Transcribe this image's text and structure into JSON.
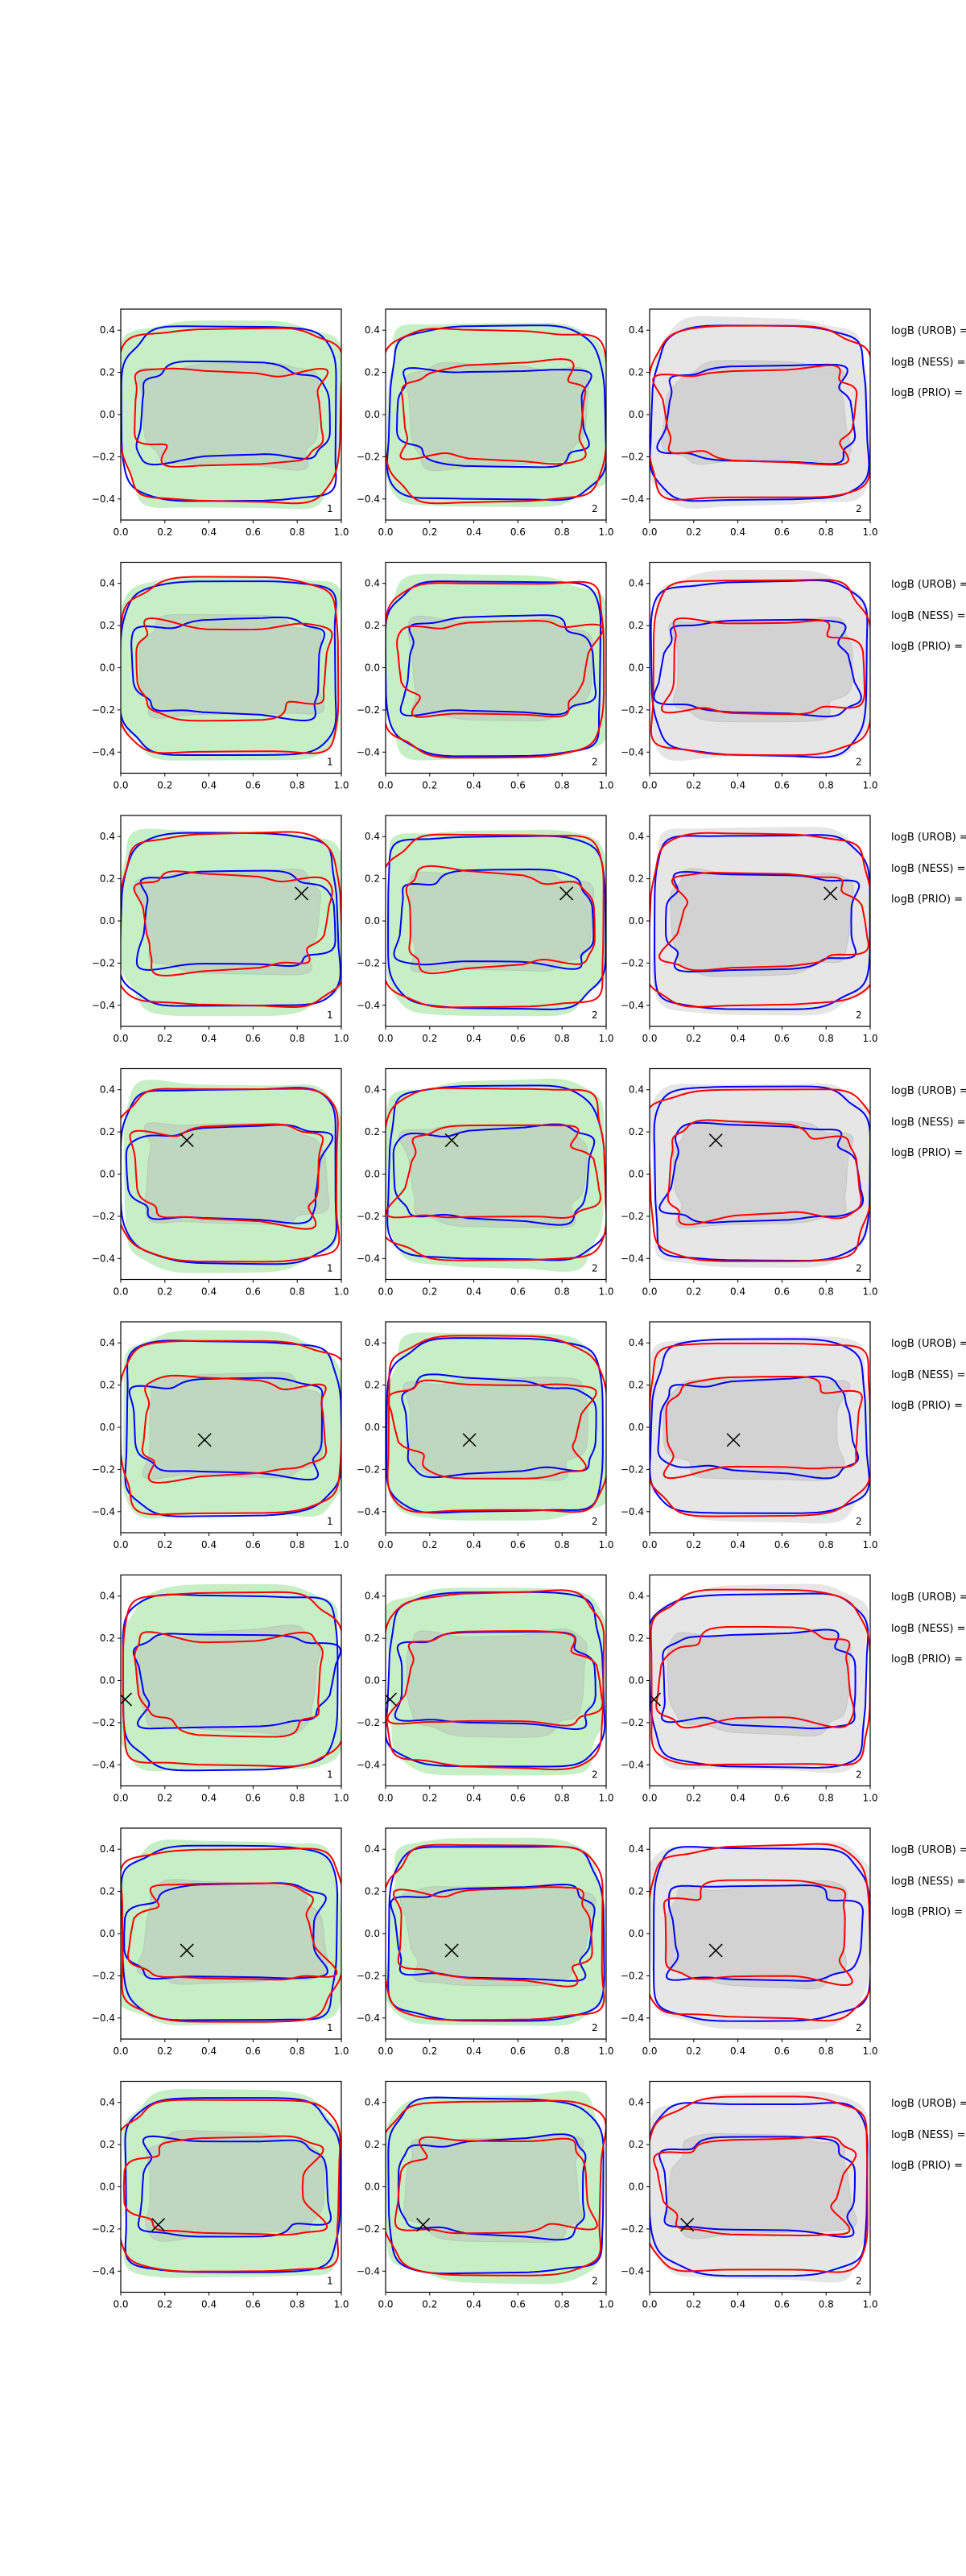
{
  "chart_data": {
    "type": "contour-grid",
    "rows": 8,
    "cols": 3,
    "xlim": [
      0.0,
      1.0
    ],
    "ylim": [
      -0.5,
      0.5
    ],
    "xticks": [
      "0.0",
      "0.2",
      "0.4",
      "0.6",
      "0.8",
      "1.0"
    ],
    "xtick_values": [
      0,
      0.2,
      0.4,
      0.6,
      0.8,
      1.0
    ],
    "yticks": [
      "-0.4",
      "-0.2",
      "0.0",
      "0.2",
      "0.4"
    ],
    "ytick_values": [
      -0.4,
      -0.2,
      0,
      0.2,
      0.4
    ],
    "panel_numbers": [
      "1",
      "2",
      "2"
    ],
    "column_fills": [
      "#c6efc6",
      "#c6efc6",
      "#e6e6e6"
    ],
    "inner_fill": "#b4b4b4",
    "series_colors": {
      "blue": "#0000ff",
      "red": "#ff0000"
    },
    "markers": [
      null,
      null,
      {
        "x": 0.82,
        "y": 0.13
      },
      {
        "x": 0.3,
        "y": 0.16
      },
      {
        "x": 0.38,
        "y": -0.06
      },
      {
        "x": 0.02,
        "y": -0.09
      },
      {
        "x": 0.3,
        "y": -0.08
      },
      {
        "x": 0.17,
        "y": -0.18
      }
    ],
    "row_labels": [
      "logB (UROB) =",
      "logB (NESS) =",
      "logB (PRIO) ="
    ]
  }
}
